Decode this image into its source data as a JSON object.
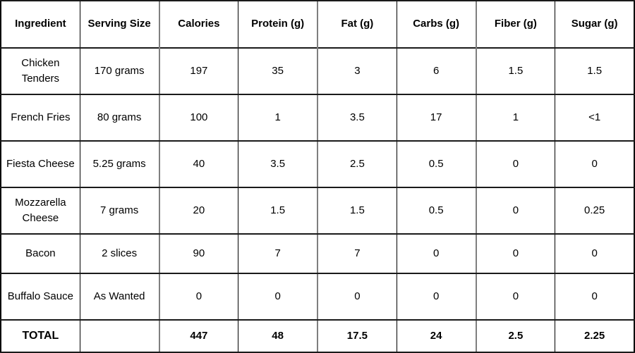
{
  "chart_data": {
    "type": "table",
    "title": "",
    "columns": [
      "Ingredient",
      "Serving Size",
      "Calories",
      "Protein (g)",
      "Fat (g)",
      "Carbs (g)",
      "Fiber (g)",
      "Sugar (g)"
    ],
    "rows": [
      [
        "Chicken Tenders",
        "170 grams",
        "197",
        "35",
        "3",
        "6",
        "1.5",
        "1.5"
      ],
      [
        "French Fries",
        "80 grams",
        "100",
        "1",
        "3.5",
        "17",
        "1",
        "<1"
      ],
      [
        "Fiesta Cheese",
        "5.25 grams",
        "40",
        "3.5",
        "2.5",
        "0.5",
        "0",
        "0"
      ],
      [
        "Mozzarella Cheese",
        "7 grams",
        "20",
        "1.5",
        "1.5",
        "0.5",
        "0",
        "0.25"
      ],
      [
        "Bacon",
        "2 slices",
        "90",
        "7",
        "7",
        "0",
        "0",
        "0"
      ],
      [
        "Buffalo Sauce",
        "As Wanted",
        "0",
        "0",
        "0",
        "0",
        "0",
        "0"
      ]
    ],
    "total_row": [
      "TOTAL",
      "",
      "447",
      "48",
      "17.5",
      "24",
      "2.5",
      "2.25"
    ],
    "colors": {
      "text": "#000000",
      "border_black": "#000000",
      "border_gray": "#7f7f7f",
      "background": "#ffffff"
    }
  }
}
